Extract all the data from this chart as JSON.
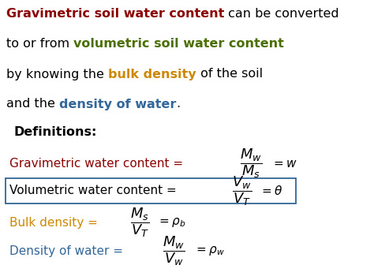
{
  "bg_color": "#ffffff",
  "figsize": [
    4.74,
    3.55
  ],
  "dpi": 100,
  "colors": {
    "red": "#8B0000",
    "green": "#4a6e00",
    "orange": "#cc8800",
    "blue": "#336699",
    "black": "#000000",
    "box_edge": "#336699"
  },
  "top_lines": [
    [
      {
        "text": "Gravimetric soil water content",
        "color": "#8B0000",
        "bold": true,
        "italic": false
      },
      {
        "text": " can be converted",
        "color": "#000000",
        "bold": false,
        "italic": false
      }
    ],
    [
      {
        "text": "to or from ",
        "color": "#000000",
        "bold": false,
        "italic": false
      },
      {
        "text": "volumetric soil water content",
        "color": "#4a6e00",
        "bold": true,
        "italic": false
      }
    ],
    [
      {
        "text": "by knowing the ",
        "color": "#000000",
        "bold": false,
        "italic": false
      },
      {
        "text": "bulk density",
        "color": "#cc8800",
        "bold": true,
        "italic": false
      },
      {
        "text": " of the soil",
        "color": "#000000",
        "bold": false,
        "italic": false
      }
    ],
    [
      {
        "text": "and the ",
        "color": "#000000",
        "bold": false,
        "italic": false
      },
      {
        "text": "density of water",
        "color": "#336699",
        "bold": true,
        "italic": false
      },
      {
        "text": ".",
        "color": "#000000",
        "bold": false,
        "italic": false
      }
    ]
  ],
  "def_rows": [
    {
      "label": "Gravimetric water content = ",
      "label_color": "#8B0000",
      "fraction_num": "M_w",
      "fraction_den": "M_s",
      "result": "= w",
      "box": false
    },
    {
      "label": "Volumetric water content = ",
      "label_color": "#000000",
      "fraction_num": "V_w",
      "fraction_den": "V_T",
      "result": "= \\theta",
      "box": true
    },
    {
      "label": "Bulk density = ",
      "label_color": "#cc8800",
      "fraction_num": "M_s",
      "fraction_den": "V_T",
      "result": "= \\rho_b",
      "box": false
    },
    {
      "label": "Density of water = ",
      "label_color": "#336699",
      "fraction_num": "M_w",
      "fraction_den": "V_w",
      "result": "= \\rho_w",
      "box": false
    }
  ]
}
